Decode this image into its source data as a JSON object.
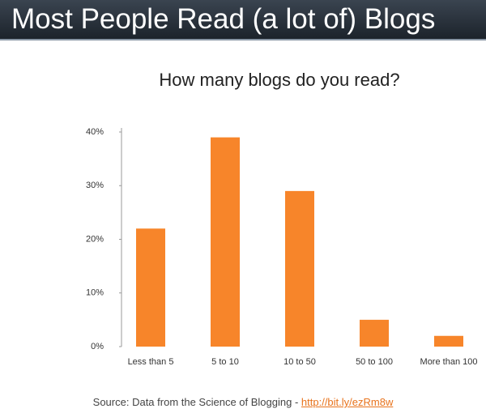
{
  "chart_data": {
    "type": "bar",
    "heading": "Most People Read (a lot of) Blogs",
    "title": "How many blogs do you read?",
    "categories": [
      "Less than 5",
      "5 to 10",
      "10 to 50",
      "50 to 100",
      "More than 100"
    ],
    "values": [
      22,
      39,
      29,
      5,
      2
    ],
    "color": "#f7852a",
    "ylim": [
      0,
      40
    ],
    "yticks": [
      {
        "value": 0,
        "label": "0%"
      },
      {
        "value": 10,
        "label": "10%"
      },
      {
        "value": 20,
        "label": "20%"
      },
      {
        "value": 30,
        "label": "30%"
      },
      {
        "value": 40,
        "label": "40%"
      }
    ],
    "grid": false,
    "source": "Source: Data from the Science of Blogging - ",
    "source_link": "http://bit.ly/ezRm8w"
  }
}
